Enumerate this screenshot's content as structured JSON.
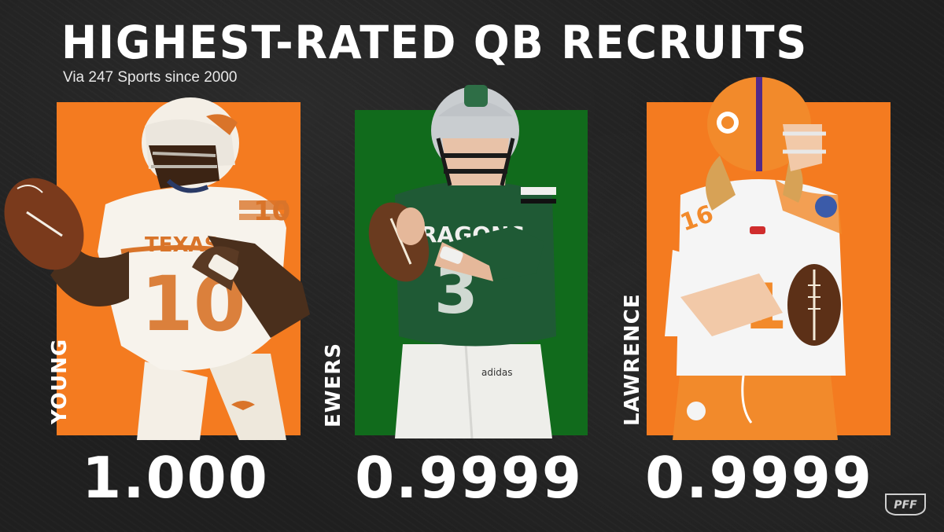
{
  "header": {
    "title": "HIGHEST-RATED QB RECRUITS",
    "subtitle": "Via 247 Sports since 2000"
  },
  "players": [
    {
      "name": "YOUNG",
      "rating": "1.000",
      "panel_color": "#f47b20",
      "jersey_number": "10"
    },
    {
      "name": "EWERS",
      "rating": "0.9999",
      "panel_color": "#116b1c",
      "jersey_number": "3"
    },
    {
      "name": "LAWRENCE",
      "rating": "0.9999",
      "panel_color": "#f47b20",
      "jersey_number": "16"
    }
  ],
  "brand": {
    "logo_text": "PFF"
  },
  "colors": {
    "orange": "#f47b20",
    "green": "#116b1c",
    "background": "#1f1f1f"
  }
}
